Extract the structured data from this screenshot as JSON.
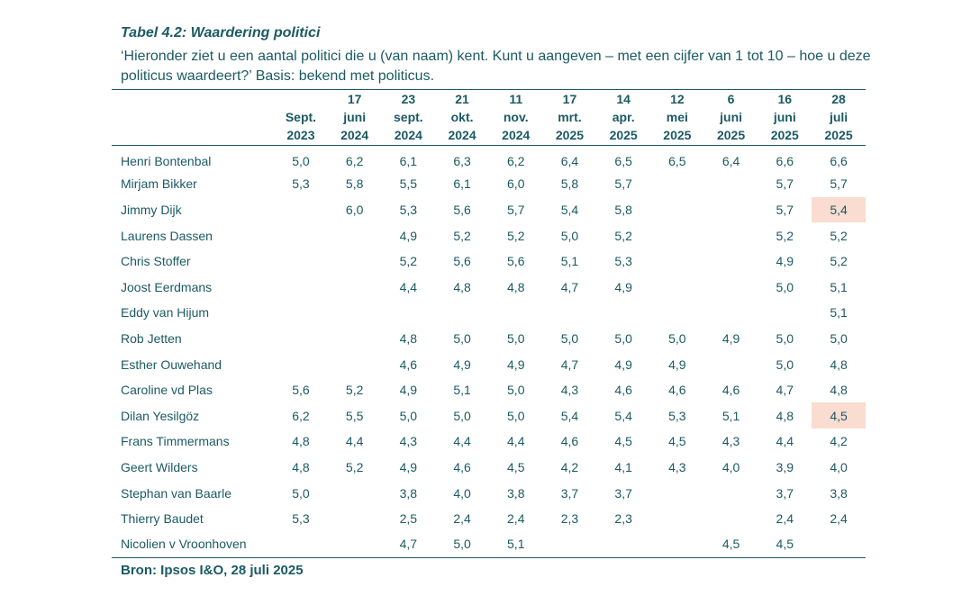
{
  "title": "Tabel 4.2: Waardering politici",
  "question": "‘Hieronder ziet u een aantal politici die u (van naam) kent. Kunt u aangeven – met een cijfer van 1 tot 10 – hoe u deze politicus waardeert?’ Basis: bekend met politicus.",
  "columns": [
    [
      "Sept.",
      "2023"
    ],
    [
      "17",
      "juni",
      "2024"
    ],
    [
      "23",
      "sept.",
      "2024"
    ],
    [
      "21",
      "okt.",
      "2024"
    ],
    [
      "11",
      "nov.",
      "2024"
    ],
    [
      "17",
      "mrt.",
      "2025"
    ],
    [
      "14",
      "apr.",
      "2025"
    ],
    [
      "12",
      "mei",
      "2025"
    ],
    [
      "6",
      "juni",
      "2025"
    ],
    [
      "16",
      "juni",
      "2025"
    ],
    [
      "28",
      "juli",
      "2025"
    ]
  ],
  "rows": [
    {
      "name": "Henri Bontenbal",
      "values": [
        "5,0",
        "6,2",
        "6,1",
        "6,3",
        "6,2",
        "6,4",
        "6,5",
        "6,5",
        "6,4",
        "6,6",
        "6,6"
      ]
    },
    {
      "name": "Mirjam Bikker",
      "values": [
        "5,3",
        "5,8",
        "5,5",
        "6,1",
        "6,0",
        "5,8",
        "5,7",
        "",
        "",
        "5,7",
        "5,7"
      ]
    },
    {
      "name": "Jimmy Dijk",
      "values": [
        "",
        "6,0",
        "5,3",
        "5,6",
        "5,7",
        "5,4",
        "5,8",
        "",
        "",
        "5,7",
        "5,4"
      ],
      "highlight_last": true
    },
    {
      "name": "Laurens Dassen",
      "values": [
        "",
        "",
        "4,9",
        "5,2",
        "5,2",
        "5,0",
        "5,2",
        "",
        "",
        "5,2",
        "5,2"
      ]
    },
    {
      "name": "Chris Stoffer",
      "values": [
        "",
        "",
        "5,2",
        "5,6",
        "5,6",
        "5,1",
        "5,3",
        "",
        "",
        "4,9",
        "5,2"
      ]
    },
    {
      "name": "Joost Eerdmans",
      "values": [
        "",
        "",
        "4,4",
        "4,8",
        "4,8",
        "4,7",
        "4,9",
        "",
        "",
        "5,0",
        "5,1"
      ]
    },
    {
      "name": "Eddy van Hijum",
      "values": [
        "",
        "",
        "",
        "",
        "",
        "",
        "",
        "",
        "",
        "",
        "5,1"
      ]
    },
    {
      "name": "Rob Jetten",
      "values": [
        "",
        "",
        "4,8",
        "5,0",
        "5,0",
        "5,0",
        "5,0",
        "5,0",
        "4,9",
        "5,0",
        "5,0"
      ]
    },
    {
      "name": "Esther Ouwehand",
      "values": [
        "",
        "",
        "4,6",
        "4,9",
        "4,9",
        "4,7",
        "4,9",
        "4,9",
        "",
        "5,0",
        "4,8"
      ]
    },
    {
      "name": "Caroline vd Plas",
      "values": [
        "5,6",
        "5,2",
        "4,9",
        "5,1",
        "5,0",
        "4,3",
        "4,6",
        "4,6",
        "4,6",
        "4,7",
        "4,8"
      ]
    },
    {
      "name": "Dilan Yesilgöz",
      "values": [
        "6,2",
        "5,5",
        "5,0",
        "5,0",
        "5,0",
        "5,4",
        "5,4",
        "5,3",
        "5,1",
        "4,8",
        "4,5"
      ],
      "highlight_last": true
    },
    {
      "name": "Frans Timmermans",
      "values": [
        "4,8",
        "4,4",
        "4,3",
        "4,4",
        "4,4",
        "4,6",
        "4,5",
        "4,5",
        "4,3",
        "4,4",
        "4,2"
      ]
    },
    {
      "name": "Geert Wilders",
      "values": [
        "4,8",
        "5,2",
        "4,9",
        "4,6",
        "4,5",
        "4,2",
        "4,1",
        "4,3",
        "4,0",
        "3,9",
        "4,0"
      ]
    },
    {
      "name": "Stephan van Baarle",
      "values": [
        "5,0",
        "",
        "3,8",
        "4,0",
        "3,8",
        "3,7",
        "3,7",
        "",
        "",
        "3,7",
        "3,8"
      ]
    },
    {
      "name": "Thierry Baudet",
      "values": [
        "5,3",
        "",
        "2,5",
        "2,4",
        "2,4",
        "2,3",
        "2,3",
        "",
        "",
        "2,4",
        "2,4"
      ]
    },
    {
      "name": "Nicolien v Vroonhoven",
      "values": [
        "",
        "",
        "4,7",
        "5,0",
        "5,1",
        "",
        "",
        "",
        "4,5",
        "4,5",
        ""
      ]
    }
  ],
  "source": "Bron: Ipsos I&O, 28 juli 2025",
  "colors": {
    "text": "#1b5a63",
    "highlight": "#fadcd0"
  }
}
